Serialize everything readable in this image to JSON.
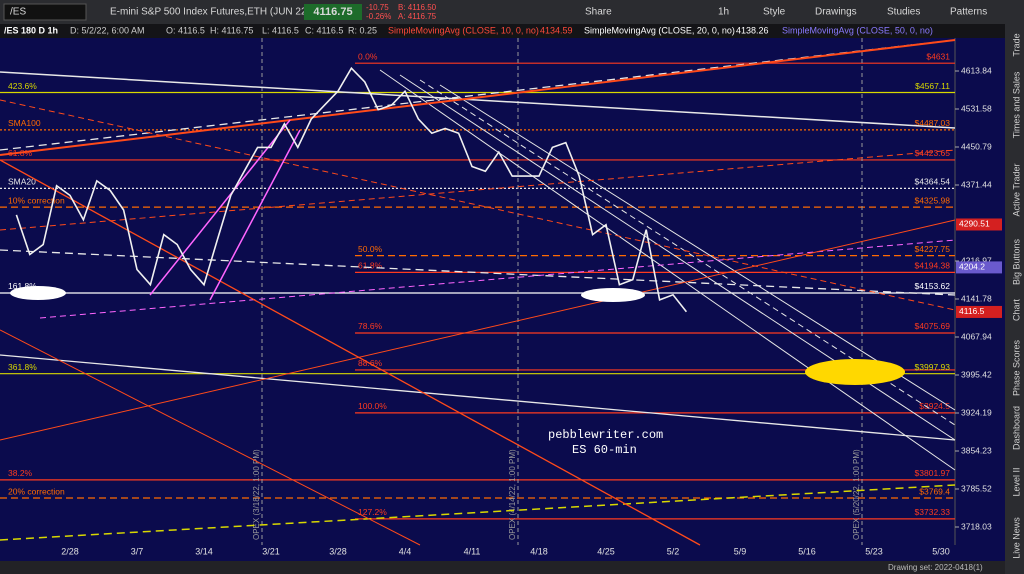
{
  "toolbar": {
    "symbol": "/ES",
    "description": "E-mini S&P 500 Index Futures,ETH (JUN 22)",
    "last": "4116.75",
    "change": "-10.75",
    "change_pct": "-0.26%",
    "bid": "B: 4116.50",
    "ask": "A: 4116.75",
    "buttons": [
      "Share",
      "1h",
      "Style",
      "Drawings",
      "Studies",
      "Patterns"
    ]
  },
  "info_bar": {
    "label": "/ES 180 D 1h",
    "items": [
      "D: 5/2/22, 6:00 AM",
      "O: 4116.5",
      "H: 4116.75",
      "L: 4116.5",
      "C: 4116.5",
      "R: 0.25"
    ],
    "studies": [
      {
        "name": "SimpleMovingAvg (CLOSE, 10, 0, no)",
        "value": "4134.59"
      },
      {
        "name": "SimpleMovingAvg (CLOSE, 20, 0, no)",
        "value": "4138.26"
      },
      {
        "name": "SimpleMovingAvg (CLOSE, 50, 0, no)"
      }
    ]
  },
  "sidebar": [
    "Trade",
    "Times and Sales",
    "Active Trader",
    "Big Buttons",
    "Chart",
    "Phase Scores",
    "Dashboard",
    "Level II",
    "Live News"
  ],
  "status": "Drawing set: 2022-0418(1)",
  "chart_data": {
    "type": "line",
    "color": "#f0f0f0",
    "categories": [
      null,
      null,
      null,
      null,
      "2/28",
      null,
      null,
      null,
      null,
      "3/7",
      null,
      null,
      null,
      null,
      "3/14",
      null,
      null,
      null,
      null,
      "3/21",
      null,
      null,
      null,
      null,
      "3/28",
      null,
      null,
      null,
      null,
      "4/4",
      null,
      null,
      null,
      null,
      "4/11",
      null,
      null,
      null,
      null,
      "4/18",
      null,
      null,
      null,
      null,
      "4/25",
      null,
      null,
      null,
      null,
      "5/2",
      null,
      null,
      null,
      null,
      "5/9",
      null,
      null,
      null,
      null,
      "5/16",
      null,
      null,
      null,
      null,
      "5/23",
      null,
      null,
      null,
      null,
      "5/30",
      null
    ],
    "values": [
      4310,
      4230,
      4250,
      4370,
      4350,
      4300,
      4380,
      4360,
      4320,
      4200,
      4170,
      4270,
      4250,
      4200,
      4170,
      4260,
      4350,
      4400,
      4450,
      4450,
      4500,
      4450,
      4510,
      4540,
      4570,
      4620,
      4590,
      4530,
      4540,
      4570,
      4510,
      4480,
      4490,
      4480,
      4410,
      4400,
      4440,
      4390,
      4390,
      4390,
      4450,
      4460,
      4390,
      4270,
      4290,
      4170,
      4180,
      4280,
      4140,
      4150,
      4116.75,
      null,
      null,
      null,
      null,
      null,
      null,
      null,
      null,
      null,
      null,
      null,
      null,
      null,
      null,
      null,
      null,
      null,
      null,
      null,
      null
    ],
    "ylim": [
      3686.5,
      4686.5
    ],
    "log": true,
    "yticks": [
      4613.84,
      4531.58,
      4450.79,
      4371.44,
      4216.97,
      4141.78,
      4067.94,
      3995.42,
      3924.19,
      3854.23,
      3785.52,
      3718.03
    ],
    "levels": [
      {
        "value": 4631,
        "color": "#ff3b1f",
        "style": "solid",
        "left": "0.0%",
        "right": "$4631"
      },
      {
        "value": 4567.11,
        "color": "#d8d800",
        "style": "solid",
        "left": "423.6%",
        "right": "$4567.11"
      },
      {
        "value": 4487.03,
        "color": "#ff6a00",
        "style": "dotted",
        "left": "SMA100",
        "right": "$4487.03"
      },
      {
        "value": 4423.65,
        "color": "#ff3b1f",
        "style": "solid",
        "left": "61.8%",
        "right": "$4423.65"
      },
      {
        "value": 4364.54,
        "color": "#e8e8e8",
        "style": "dotted",
        "left": "SMA20",
        "right": "$4364.54"
      },
      {
        "value": 4325.98,
        "color": "#ff6a00",
        "style": "dashed",
        "left": "10% correction",
        "right": "$4325.98"
      },
      {
        "value": 4227.75,
        "color": "#ff6a00",
        "style": "dashed",
        "left": "50.0%",
        "right": "$4227.75"
      },
      {
        "value": 4194.38,
        "color": "#ff3b1f",
        "style": "solid",
        "left": "61.8%",
        "right": "$4194.38"
      },
      {
        "value": 4153.62,
        "color": "#ffffff",
        "style": "solid",
        "left": "161.8%",
        "right": "$4153.62"
      },
      {
        "value": 4075.69,
        "color": "#ff3b1f",
        "style": "solid",
        "left": "78.6%",
        "right": "$4075.69"
      },
      {
        "value": 4005,
        "color": "#ff3b1f",
        "style": "solid",
        "left": "88.6%"
      },
      {
        "value": 3997.93,
        "color": "#d8d800",
        "style": "solid",
        "left": "361.8%",
        "right": "$3997.93"
      },
      {
        "value": 3924.5,
        "color": "#ff3b1f",
        "style": "solid",
        "left": "100.0%",
        "right": "$3924.5"
      },
      {
        "value": 3801.97,
        "color": "#ff3b1f",
        "style": "solid",
        "left": "38.2%",
        "right": "$3801.97"
      },
      {
        "value": 3769.4,
        "color": "#ff6a00",
        "style": "dashed",
        "left": "20% correction",
        "right": "$3769.4"
      },
      {
        "value": 3732.33,
        "color": "#ff3b1f",
        "style": "solid",
        "left": "127.2%",
        "right": "$3732.33"
      }
    ],
    "price_markers": [
      {
        "value": 4290.51,
        "color": "#d42020"
      },
      {
        "value": 4204.2,
        "color": "#6a5acd"
      },
      {
        "value": 4116.5,
        "color": "#d42020"
      }
    ],
    "events": [
      "OPEX (3/18/22, 1:00 PM)",
      "OPEX (4/14/22, 1:00 PM)",
      "OPEX (5/20/22, 1:00 PM)"
    ],
    "annotations": [
      "pebblewriter.com",
      "ES 60-min"
    ]
  }
}
